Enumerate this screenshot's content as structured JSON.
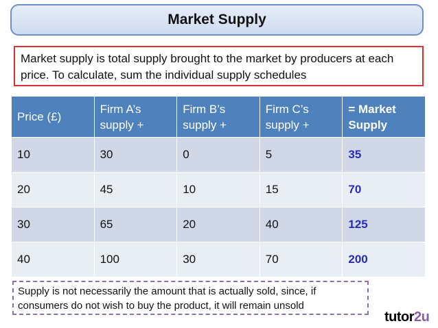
{
  "title": "Market Supply",
  "definition": "Market supply is total supply brought to the market by producers at each price. To calculate, sum the individual supply schedules",
  "table": {
    "headers": [
      {
        "line1": "Price (£)",
        "line2": ""
      },
      {
        "line1": "Firm A’s",
        "line2": "supply +"
      },
      {
        "line1": "Firm B’s",
        "line2": "supply +"
      },
      {
        "line1": "Firm C’s",
        "line2": "supply +"
      },
      {
        "line1": "= Market",
        "line2": "Supply"
      }
    ],
    "rows": [
      [
        "10",
        "30",
        "0",
        "5",
        "35"
      ],
      [
        "20",
        "45",
        "10",
        "15",
        "70"
      ],
      [
        "30",
        "65",
        "20",
        "40",
        "125"
      ],
      [
        "40",
        "100",
        "30",
        "70",
        "200"
      ]
    ]
  },
  "note": "Supply is not necessarily the amount that is actually sold, since, if consumers do not wish to buy the product, it will remain unsold",
  "logo": {
    "main": "tutor",
    "accent": "2u"
  },
  "colors": {
    "header_bg": "#4f81bd",
    "row_odd": "#d0d8e8",
    "row_even": "#e9edf4",
    "total_text": "#2a2ab8",
    "definition_border": "#d8312f"
  }
}
